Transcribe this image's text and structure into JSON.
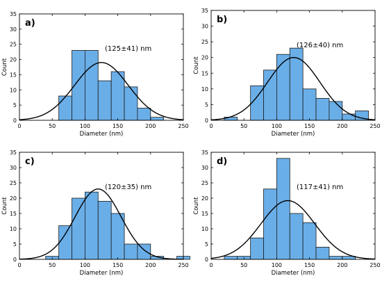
{
  "figure": {
    "bar_color": "#6aaee8",
    "bar_edge": "#1b1b1b",
    "curve_color": "#000000"
  },
  "chart_data": [
    {
      "type": "bar",
      "panel": "a)",
      "annotation": "(125±41) nm",
      "xlabel": "Diameter (nm)",
      "ylabel": "Count",
      "xlim": [
        0,
        250
      ],
      "ylim": [
        0,
        35
      ],
      "xticks": [
        "0",
        "50",
        "100",
        "150",
        "200",
        "250"
      ],
      "yticks": [
        "0",
        "5",
        "10",
        "15",
        "20",
        "25",
        "30",
        "35"
      ],
      "bin_width": 20,
      "bins": [
        {
          "start": 60,
          "count": 8
        },
        {
          "start": 80,
          "count": 23
        },
        {
          "start": 100,
          "count": 23
        },
        {
          "start": 120,
          "count": 13
        },
        {
          "start": 140,
          "count": 16
        },
        {
          "start": 160,
          "count": 11
        },
        {
          "start": 180,
          "count": 4
        },
        {
          "start": 200,
          "count": 1
        }
      ],
      "fit": {
        "mean": 125,
        "sigma": 41,
        "peak": 19
      }
    },
    {
      "type": "bar",
      "panel": "b)",
      "annotation": "(126±40) nm",
      "xlabel": "Diameter (nm)",
      "ylabel": "Count",
      "xlim": [
        0,
        250
      ],
      "ylim": [
        0,
        35
      ],
      "xticks": [
        "0",
        "50",
        "100",
        "150",
        "200",
        "250"
      ],
      "yticks": [
        "0",
        "5",
        "10",
        "15",
        "20",
        "25",
        "30",
        "35"
      ],
      "bin_width": 20,
      "bins": [
        {
          "start": 20,
          "count": 1
        },
        {
          "start": 60,
          "count": 11
        },
        {
          "start": 80,
          "count": 16
        },
        {
          "start": 100,
          "count": 21
        },
        {
          "start": 120,
          "count": 23
        },
        {
          "start": 140,
          "count": 10
        },
        {
          "start": 160,
          "count": 7
        },
        {
          "start": 180,
          "count": 6
        },
        {
          "start": 200,
          "count": 2
        },
        {
          "start": 220,
          "count": 3
        }
      ],
      "fit": {
        "mean": 126,
        "sigma": 40,
        "peak": 20
      }
    },
    {
      "type": "bar",
      "panel": "c)",
      "annotation": "(120±35) nm",
      "xlabel": "Diameter (nm)",
      "ylabel": "Count",
      "xlim": [
        0,
        250
      ],
      "ylim": [
        0,
        35
      ],
      "xticks": [
        "0",
        "50",
        "100",
        "150",
        "200",
        "250"
      ],
      "yticks": [
        "0",
        "5",
        "10",
        "15",
        "20",
        "25",
        "30",
        "35"
      ],
      "bin_width": 20,
      "bins": [
        {
          "start": 40,
          "count": 1
        },
        {
          "start": 60,
          "count": 11
        },
        {
          "start": 80,
          "count": 20
        },
        {
          "start": 100,
          "count": 22
        },
        {
          "start": 120,
          "count": 19
        },
        {
          "start": 140,
          "count": 15
        },
        {
          "start": 160,
          "count": 5
        },
        {
          "start": 180,
          "count": 5
        },
        {
          "start": 200,
          "count": 1
        },
        {
          "start": 240,
          "count": 1
        }
      ],
      "fit": {
        "mean": 120,
        "sigma": 35,
        "peak": 23
      }
    },
    {
      "type": "bar",
      "panel": "d)",
      "annotation": "(117±41) nm",
      "xlabel": "Diameter (nm)",
      "ylabel": "Count",
      "xlim": [
        0,
        250
      ],
      "ylim": [
        0,
        35
      ],
      "xticks": [
        "0",
        "50",
        "100",
        "150",
        "200",
        "250"
      ],
      "yticks": [
        "0",
        "5",
        "10",
        "15",
        "20",
        "25",
        "30",
        "35"
      ],
      "bin_width": 20,
      "bins": [
        {
          "start": 20,
          "count": 1
        },
        {
          "start": 40,
          "count": 1
        },
        {
          "start": 60,
          "count": 7
        },
        {
          "start": 80,
          "count": 23
        },
        {
          "start": 100,
          "count": 33
        },
        {
          "start": 120,
          "count": 15
        },
        {
          "start": 140,
          "count": 12
        },
        {
          "start": 160,
          "count": 4
        },
        {
          "start": 180,
          "count": 1
        },
        {
          "start": 200,
          "count": 1
        }
      ],
      "fit": {
        "mean": 117,
        "sigma": 41,
        "peak": 19.2
      }
    }
  ]
}
